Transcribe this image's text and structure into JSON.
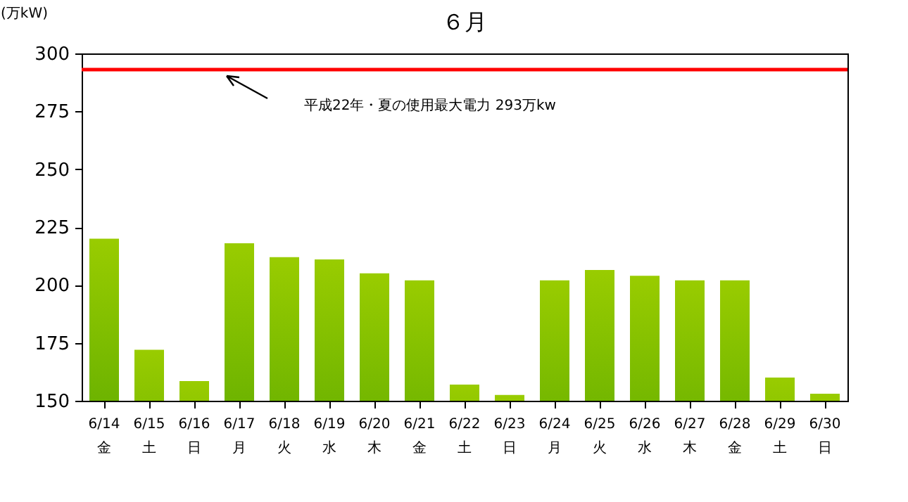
{
  "chart_data": {
    "type": "bar",
    "title": "６月",
    "ylabel": "(万kW)",
    "categories": [
      "6/14\n金",
      "6/15\n土",
      "6/16\n日",
      "6/17\n月",
      "6/18\n火",
      "6/19\n水",
      "6/20\n木",
      "6/21\n金",
      "6/22\n土",
      "6/23\n日",
      "6/24\n月",
      "6/25\n火",
      "6/26\n水",
      "6/27\n木",
      "6/28\n金",
      "6/29\n土",
      "6/30\n日"
    ],
    "values": [
      220,
      172,
      158.5,
      218,
      212,
      211,
      205,
      202,
      157,
      152.5,
      202,
      206.5,
      204,
      202,
      202,
      160,
      153
    ],
    "color": "#99cc00",
    "ylim": [
      150,
      300
    ],
    "yticks": [
      150,
      175,
      200,
      225,
      250,
      275,
      300
    ],
    "ref_lines": [
      {
        "axis": "y",
        "value": 293,
        "color": "#ff0000"
      }
    ],
    "annotations": [
      "平成22年・夏の使用最大電力  293万kw"
    ],
    "grid": false
  }
}
